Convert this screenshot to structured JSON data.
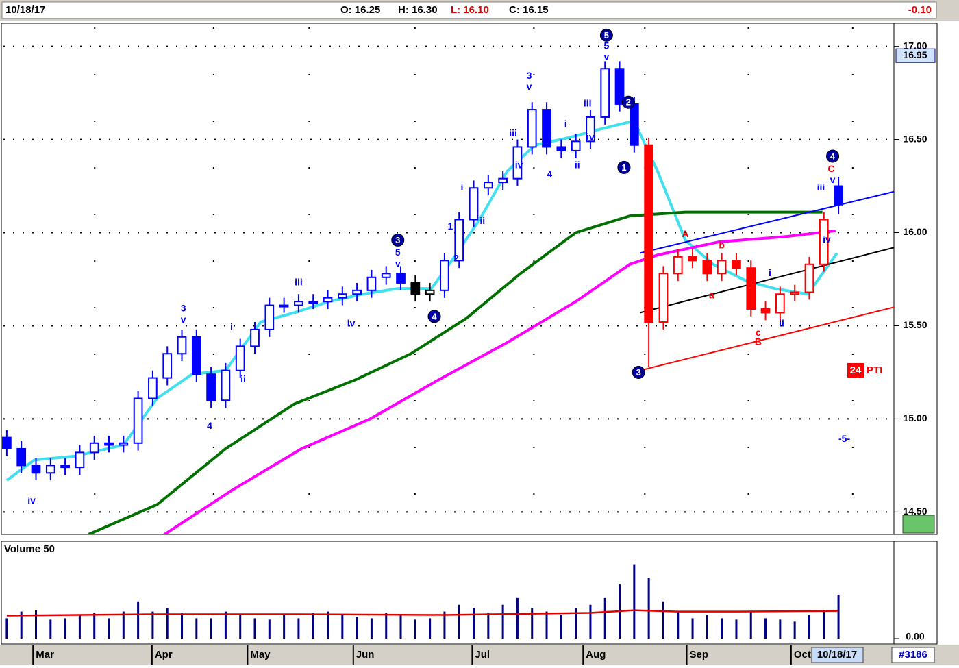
{
  "header": {
    "date": "10/18/17",
    "open": "O: 16.25",
    "high": "H: 16.30",
    "low": "L: 16.10",
    "close": "C: 16.15",
    "change": "-0.10"
  },
  "chart_data": [
    {
      "type": "candlestick",
      "xlim": [
        -0.23,
        60.8
      ],
      "ylim": [
        14.38,
        17.12
      ],
      "yticks": [
        {
          "value": 17,
          "label": "17.00"
        },
        {
          "value": 16.5,
          "label": "16.50"
        },
        {
          "value": 16,
          "label": "16.00"
        },
        {
          "value": 15.5,
          "label": "15.50"
        },
        {
          "value": 15,
          "label": "15.00"
        },
        {
          "value": 14.5,
          "label": "14.50"
        }
      ],
      "grid": true,
      "price_tag": 16.95,
      "open": [
        14.9,
        14.84,
        14.75,
        14.71,
        14.75,
        14.74,
        14.82,
        14.87,
        14.86,
        14.87,
        15.11,
        15.22,
        15.35,
        15.44,
        15.24,
        15.1,
        15.26,
        15.39,
        15.48,
        15.61,
        15.61,
        15.63,
        15.63,
        15.65,
        15.67,
        15.69,
        15.76,
        15.78,
        15.73,
        15.67,
        15.69,
        15.85,
        16.07,
        16.24,
        16.27,
        16.29,
        16.46,
        16.66,
        16.46,
        16.44,
        16.49,
        16.62,
        16.88,
        16.69,
        16.47,
        15.52,
        15.78,
        15.87,
        15.85,
        15.78,
        15.85,
        15.81,
        15.59,
        15.57,
        15.67,
        15.68,
        15.83,
        16.25
      ],
      "high": [
        14.94,
        14.88,
        14.79,
        14.79,
        14.79,
        14.86,
        14.91,
        14.91,
        14.91,
        15.15,
        15.26,
        15.39,
        15.48,
        15.48,
        15.28,
        15.3,
        15.43,
        15.52,
        15.65,
        15.65,
        15.67,
        15.67,
        15.69,
        15.71,
        15.73,
        15.8,
        15.82,
        15.82,
        15.77,
        15.73,
        15.89,
        16.11,
        16.28,
        16.31,
        16.33,
        16.5,
        16.7,
        16.7,
        16.5,
        16.53,
        16.66,
        16.92,
        16.92,
        16.73,
        16.51,
        15.82,
        15.91,
        15.91,
        15.89,
        15.89,
        15.89,
        15.85,
        15.63,
        15.71,
        15.72,
        15.87,
        16.11,
        16.3
      ],
      "low": [
        14.8,
        14.71,
        14.67,
        14.67,
        14.7,
        14.7,
        14.78,
        14.82,
        14.82,
        14.83,
        15.07,
        15.18,
        15.31,
        15.2,
        15.06,
        15.06,
        15.22,
        15.35,
        15.44,
        15.57,
        15.57,
        15.59,
        15.59,
        15.61,
        15.63,
        15.65,
        15.72,
        15.69,
        15.63,
        15.63,
        15.65,
        15.81,
        16.03,
        16.2,
        16.23,
        16.25,
        16.42,
        16.42,
        16.4,
        16.4,
        16.45,
        16.58,
        16.65,
        16.43,
        15.28,
        15.48,
        15.74,
        15.81,
        15.74,
        15.74,
        15.77,
        15.55,
        15.53,
        15.53,
        15.63,
        15.64,
        15.79,
        16.1
      ],
      "close": [
        14.84,
        14.75,
        14.71,
        14.75,
        14.74,
        14.82,
        14.87,
        14.86,
        14.87,
        15.11,
        15.22,
        15.35,
        15.44,
        15.24,
        15.1,
        15.26,
        15.39,
        15.48,
        15.61,
        15.61,
        15.63,
        15.63,
        15.65,
        15.67,
        15.69,
        15.76,
        15.78,
        15.73,
        15.67,
        15.69,
        15.85,
        16.07,
        16.24,
        16.27,
        16.29,
        16.46,
        16.66,
        16.46,
        16.44,
        16.49,
        16.62,
        16.88,
        16.69,
        16.47,
        15.52,
        15.78,
        15.87,
        15.85,
        15.78,
        15.85,
        15.81,
        15.59,
        15.57,
        15.67,
        15.68,
        15.83,
        16.07,
        16.15
      ],
      "colors": [
        "#0000ff",
        "#0000ff",
        "#0000ff",
        "#0000ff",
        "#0000ff",
        "#0000ff",
        "#0000ff",
        "#0000ff",
        "#0000ff",
        "#0000ff",
        "#0000ff",
        "#0000ff",
        "#0000ff",
        "#0000ff",
        "#0000ff",
        "#0000ff",
        "#0000ff",
        "#0000ff",
        "#0000ff",
        "#0000ff",
        "#0000ff",
        "#0000ff",
        "#0000ff",
        "#0000ff",
        "#0000ff",
        "#0000ff",
        "#0000ff",
        "#0000ff",
        "#000000",
        "#000000",
        "#0000ff",
        "#0000ff",
        "#0000ff",
        "#0000ff",
        "#0000ff",
        "#0000ff",
        "#0000ff",
        "#0000ff",
        "#0000ff",
        "#0000ff",
        "#0000ff",
        "#0000ff",
        "#0000ff",
        "#0000ff",
        "#ff0000",
        "#ff0000",
        "#ff0000",
        "#ff0000",
        "#ff0000",
        "#ff0000",
        "#ff0000",
        "#ff0000",
        "#ff0000",
        "#ff0000",
        "#ff0000",
        "#ff0000",
        "#ff0000",
        "#0000ff"
      ],
      "series": [
        {
          "color": "#40e0f0",
          "x": [
            0,
            1.9,
            4.7,
            8,
            10.3,
            12.7,
            15,
            17.4,
            19.7,
            22.1,
            24.4,
            26.8,
            29.1,
            30.5,
            32.4,
            34.3,
            36.2,
            38.5,
            40.4,
            43,
            44.6,
            46.5,
            48.4,
            50.7,
            52.6,
            54.9,
            56.9
          ],
          "values": [
            14.67,
            14.78,
            14.8,
            14.86,
            15.11,
            15.24,
            15.26,
            15.52,
            15.57,
            15.63,
            15.67,
            15.7,
            15.7,
            15.85,
            16.07,
            16.33,
            16.47,
            16.51,
            16.55,
            16.6,
            16.33,
            15.96,
            15.83,
            15.74,
            15.7,
            15.67,
            15.89
          ]
        },
        {
          "color": "#007000",
          "x": [
            5.6,
            10.3,
            15,
            19.7,
            23.9,
            27.7,
            31.5,
            35.2,
            39,
            42.7,
            46.5,
            49.3,
            52.6,
            55.9
          ],
          "values": [
            14.38,
            14.54,
            14.84,
            15.08,
            15.21,
            15.35,
            15.54,
            15.78,
            16.0,
            16.09,
            16.11,
            16.11,
            16.11,
            16.11
          ]
        },
        {
          "color": "#ff00ff",
          "x": [
            10.8,
            15.5,
            20.2,
            24.9,
            29.6,
            34.3,
            39,
            42.7,
            44.6,
            48.8,
            53.5,
            56.8
          ],
          "values": [
            14.38,
            14.62,
            14.84,
            15.0,
            15.21,
            15.41,
            15.63,
            15.83,
            15.88,
            15.95,
            15.98,
            16.01
          ]
        }
      ],
      "trendlines": [
        {
          "color": "#0000ff",
          "x": [
            43.4,
            60.8
          ],
          "values": [
            15.89,
            16.22
          ]
        },
        {
          "color": "#000000",
          "x": [
            43.4,
            60.8
          ],
          "values": [
            15.57,
            15.92
          ]
        },
        {
          "color": "#ff0000",
          "x": [
            43.4,
            60.8
          ],
          "values": [
            15.26,
            15.6
          ]
        }
      ],
      "annotations": [
        {
          "text": "iv",
          "x": 1.7,
          "y": 14.56,
          "color": "#0000ff"
        },
        {
          "text": "3",
          "x": 12.1,
          "y": 15.59,
          "color": "#0000ff"
        },
        {
          "text": "v",
          "x": 12.1,
          "y": 15.53,
          "color": "#0000ff"
        },
        {
          "text": "4",
          "x": 13.9,
          "y": 14.96,
          "color": "#0000ff"
        },
        {
          "text": "i",
          "x": 15.4,
          "y": 15.49,
          "color": "#0000ff"
        },
        {
          "text": "ii",
          "x": 16.2,
          "y": 15.21,
          "color": "#0000ff"
        },
        {
          "text": "iii",
          "x": 20.0,
          "y": 15.73,
          "color": "#0000ff"
        },
        {
          "text": "iv",
          "x": 23.6,
          "y": 15.51,
          "color": "#0000ff"
        },
        {
          "text": "5",
          "x": 26.8,
          "y": 15.89,
          "color": "#0000ff"
        },
        {
          "text": "v",
          "x": 26.8,
          "y": 15.83,
          "color": "#0000ff"
        },
        {
          "text": "1",
          "x": 30.4,
          "y": 16.03,
          "color": "#0000ff"
        },
        {
          "text": "2",
          "x": 30.8,
          "y": 15.86,
          "color": "#0000ff"
        },
        {
          "text": "i",
          "x": 31.2,
          "y": 16.24,
          "color": "#0000ff"
        },
        {
          "text": "ii",
          "x": 32.6,
          "y": 16.06,
          "color": "#0000ff"
        },
        {
          "text": "iii",
          "x": 34.7,
          "y": 16.53,
          "color": "#0000ff"
        },
        {
          "text": "iv",
          "x": 35.1,
          "y": 16.36,
          "color": "#0000ff"
        },
        {
          "text": "3",
          "x": 35.8,
          "y": 16.84,
          "color": "#0000ff"
        },
        {
          "text": "v",
          "x": 35.8,
          "y": 16.78,
          "color": "#0000ff"
        },
        {
          "text": "4",
          "x": 37.2,
          "y": 16.31,
          "color": "#0000ff"
        },
        {
          "text": "i",
          "x": 38.3,
          "y": 16.58,
          "color": "#0000ff"
        },
        {
          "text": "ii",
          "x": 39.1,
          "y": 16.36,
          "color": "#0000ff"
        },
        {
          "text": "iii",
          "x": 39.8,
          "y": 16.69,
          "color": "#0000ff"
        },
        {
          "text": "iv",
          "x": 40.0,
          "y": 16.51,
          "color": "#0000ff"
        },
        {
          "text": "5",
          "x": 41.1,
          "y": 17.0,
          "color": "#0000ff"
        },
        {
          "text": "v",
          "x": 41.1,
          "y": 16.94,
          "color": "#0000ff"
        },
        {
          "text": "A",
          "x": 46.5,
          "y": 15.99,
          "color": "#ff0000"
        },
        {
          "text": "a",
          "x": 48.3,
          "y": 15.66,
          "color": "#ff0000"
        },
        {
          "text": "b",
          "x": 49.0,
          "y": 15.93,
          "color": "#ff0000"
        },
        {
          "text": "c",
          "x": 51.5,
          "y": 15.46,
          "color": "#ff0000"
        },
        {
          "text": "B",
          "x": 51.5,
          "y": 15.41,
          "color": "#ff0000"
        },
        {
          "text": "i",
          "x": 52.3,
          "y": 15.78,
          "color": "#0000ff"
        },
        {
          "text": "ii",
          "x": 53.1,
          "y": 15.51,
          "color": "#0000ff"
        },
        {
          "text": "iii",
          "x": 55.8,
          "y": 16.24,
          "color": "#0000ff"
        },
        {
          "text": "iv",
          "x": 56.2,
          "y": 15.96,
          "color": "#0000ff"
        },
        {
          "text": "C",
          "x": 56.5,
          "y": 16.34,
          "color": "#ff0000"
        },
        {
          "text": "v",
          "x": 56.6,
          "y": 16.28,
          "color": "#0000ff"
        },
        {
          "text": "-5-",
          "x": 57.4,
          "y": 14.89,
          "color": "#0000ff"
        }
      ],
      "circles": [
        {
          "text": "5",
          "x": 41.1,
          "y": 17.06
        },
        {
          "text": "3",
          "x": 26.8,
          "y": 15.96
        },
        {
          "text": "4",
          "x": 29.3,
          "y": 15.55
        },
        {
          "text": "2",
          "x": 42.6,
          "y": 16.7
        },
        {
          "text": "1",
          "x": 42.3,
          "y": 16.35
        },
        {
          "text": "3",
          "x": 43.3,
          "y": 15.25
        },
        {
          "text": "4",
          "x": 56.6,
          "y": 16.41
        }
      ],
      "badge": "24",
      "badge_label": "PTI"
    },
    {
      "type": "bar",
      "title": "Volume 50",
      "color": "#000080",
      "xlim": [
        -0.23,
        60.8
      ],
      "ylim": [
        0,
        142
      ],
      "yticks": [
        {
          "value": 0,
          "label": "0.00"
        }
      ],
      "xticks": [
        {
          "value": 1.8,
          "label": "Mar"
        },
        {
          "value": 9.95,
          "label": "Apr"
        },
        {
          "value": 16.5,
          "label": "May"
        },
        {
          "value": 23.75,
          "label": "Jun"
        },
        {
          "value": 31.9,
          "label": "Jul"
        },
        {
          "value": 39.5,
          "label": "Aug"
        },
        {
          "value": 46.6,
          "label": "Sep"
        },
        {
          "value": 53.75,
          "label": "Oct"
        }
      ],
      "values": [
        30,
        40,
        42,
        28,
        30,
        35,
        38,
        30,
        40,
        55,
        40,
        45,
        38,
        30,
        30,
        40,
        35,
        30,
        28,
        35,
        30,
        38,
        40,
        35,
        32,
        30,
        38,
        35,
        28,
        30,
        40,
        50,
        45,
        38,
        50,
        60,
        45,
        40,
        35,
        45,
        50,
        60,
        80,
        110,
        90,
        55,
        40,
        30,
        35,
        30,
        28,
        40,
        30,
        28,
        25,
        35,
        40,
        65
      ],
      "average": {
        "color": "#e00000",
        "x": [
          0,
          10,
          20,
          30,
          40,
          43,
          46,
          50,
          57
        ],
        "values": [
          34,
          36,
          36,
          35,
          38,
          42,
          40,
          40,
          41
        ]
      }
    }
  ],
  "footer": {
    "date_box": "10/18/17",
    "id": "#3186"
  }
}
